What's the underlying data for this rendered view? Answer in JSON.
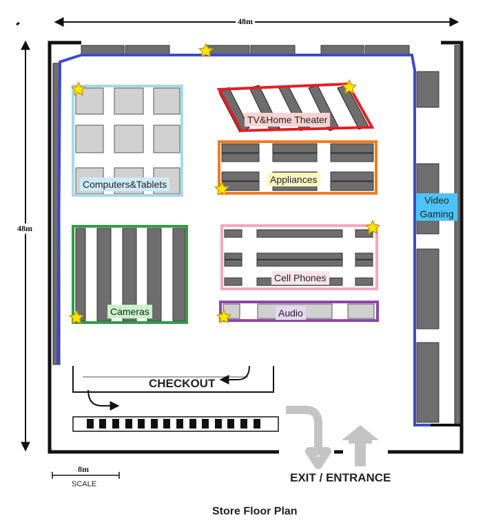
{
  "title": "Store Floor Plan",
  "dimensions": {
    "width": "48m",
    "height": "48m"
  },
  "scale": {
    "value": "8m",
    "label": "SCALE"
  },
  "departments": {
    "computers": {
      "label": "Computers&Tablets",
      "color": "#a8d8ea"
    },
    "tv": {
      "label": "TV&Home Theater",
      "color": "#e31e24"
    },
    "appliances": {
      "label": "Appliances",
      "color": "#f47b20"
    },
    "video_gaming": {
      "label": "Video\nGaming",
      "color": "#4fc3f7"
    },
    "cameras": {
      "label": "Cameras",
      "color": "#2e9e47"
    },
    "cell_phones": {
      "label": "Cell Phones",
      "color": "#f4a7c0"
    },
    "audio": {
      "label": "Audio",
      "color": "#8e44ad"
    }
  },
  "checkout_label": "CHECKOUT",
  "exit_label": "EXIT / ENTRANCE",
  "colors": {
    "path": "#3b4bc8",
    "star": "#ffe600",
    "shelf": "#6e6e6e",
    "block": "#d0d0d0"
  }
}
